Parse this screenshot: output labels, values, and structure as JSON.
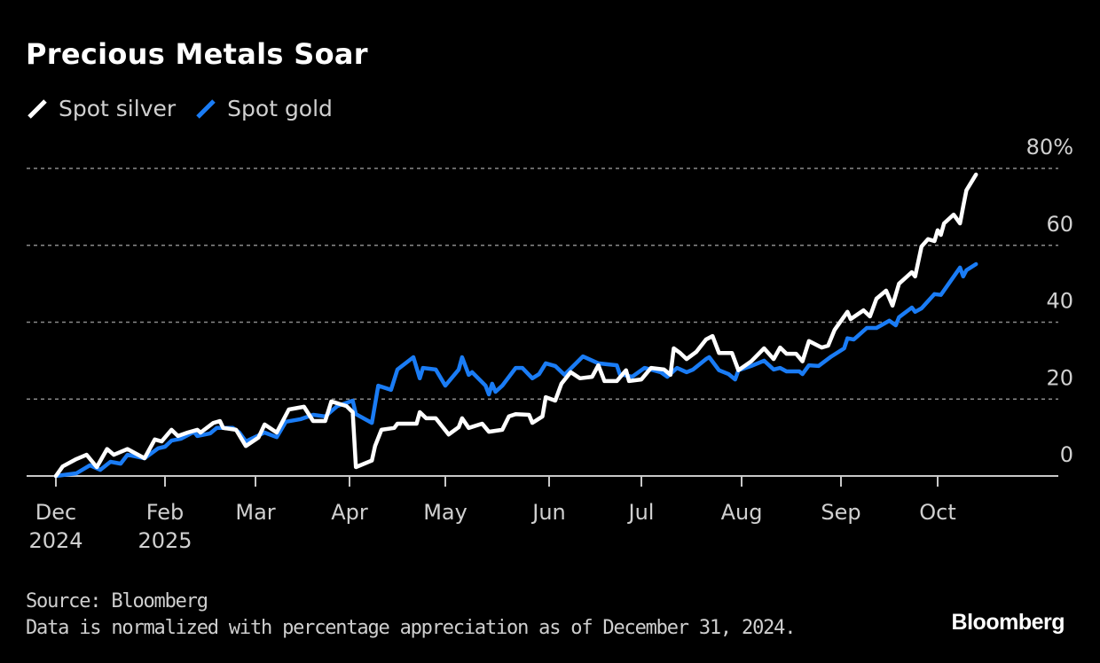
{
  "chart_data": {
    "type": "line",
    "title": "Precious Metals Soar",
    "xlabel": "",
    "ylabel": "",
    "ylim": [
      0,
      80
    ],
    "y_ticks": [
      0,
      20,
      40,
      60,
      80
    ],
    "y_tick_labels": [
      "0",
      "20",
      "40",
      "60",
      "80%"
    ],
    "x_ticks": [
      {
        "date": "2024-12-31",
        "label": "Dec",
        "sublabel": "2024"
      },
      {
        "date": "2025-02-01",
        "label": "Feb",
        "sublabel": "2025"
      },
      {
        "date": "2025-03-01",
        "label": "Mar",
        "sublabel": ""
      },
      {
        "date": "2025-04-01",
        "label": "Apr",
        "sublabel": ""
      },
      {
        "date": "2025-05-01",
        "label": "May",
        "sublabel": ""
      },
      {
        "date": "2025-06-01",
        "label": "Jun",
        "sublabel": ""
      },
      {
        "date": "2025-07-01",
        "label": "Jul",
        "sublabel": ""
      },
      {
        "date": "2025-08-01",
        "label": "Aug",
        "sublabel": ""
      },
      {
        "date": "2025-09-01",
        "label": "Sep",
        "sublabel": ""
      },
      {
        "date": "2025-10-01",
        "label": "Oct",
        "sublabel": ""
      }
    ],
    "grid": "horizontal dashed",
    "legend": "top-left",
    "series": [
      {
        "name": "Spot silver",
        "color": "#ffffff",
        "points": [
          [
            "2024-12-31",
            0
          ],
          [
            "2025-01-02",
            2.5
          ],
          [
            "2025-01-06",
            4.4
          ],
          [
            "2025-01-09",
            5.5
          ],
          [
            "2025-01-12",
            2.3
          ],
          [
            "2025-01-15",
            7
          ],
          [
            "2025-01-17",
            5.5
          ],
          [
            "2025-01-21",
            7
          ],
          [
            "2025-01-26",
            4.6
          ],
          [
            "2025-01-29",
            9.5
          ],
          [
            "2025-01-31",
            9
          ],
          [
            "2025-02-03",
            12
          ],
          [
            "2025-02-05",
            10.4
          ],
          [
            "2025-02-08",
            11.3
          ],
          [
            "2025-02-11",
            12
          ],
          [
            "2025-02-12",
            11.3
          ],
          [
            "2025-02-16",
            13.8
          ],
          [
            "2025-02-18",
            14.3
          ],
          [
            "2025-02-19",
            12.5
          ],
          [
            "2025-02-23",
            12
          ],
          [
            "2025-02-26",
            7.8
          ],
          [
            "2025-03-02",
            10
          ],
          [
            "2025-03-04",
            13.4
          ],
          [
            "2025-03-08",
            11.3
          ],
          [
            "2025-03-12",
            17.3
          ],
          [
            "2025-03-17",
            18
          ],
          [
            "2025-03-20",
            14.3
          ],
          [
            "2025-03-24",
            14.3
          ],
          [
            "2025-03-26",
            19.4
          ],
          [
            "2025-03-31",
            18.2
          ],
          [
            "2025-04-02",
            16.6
          ],
          [
            "2025-04-03",
            2.3
          ],
          [
            "2025-04-08",
            4
          ],
          [
            "2025-04-09",
            7.8
          ],
          [
            "2025-04-11",
            12
          ],
          [
            "2025-04-15",
            12.5
          ],
          [
            "2025-04-16",
            13.6
          ],
          [
            "2025-04-22",
            13.6
          ],
          [
            "2025-04-23",
            16.6
          ],
          [
            "2025-04-25",
            15
          ],
          [
            "2025-04-28",
            15
          ],
          [
            "2025-05-02",
            10.8
          ],
          [
            "2025-05-05",
            12.7
          ],
          [
            "2025-05-06",
            15
          ],
          [
            "2025-05-08",
            12.5
          ],
          [
            "2025-05-12",
            13.6
          ],
          [
            "2025-05-14",
            11.5
          ],
          [
            "2025-05-18",
            12
          ],
          [
            "2025-05-20",
            15.5
          ],
          [
            "2025-05-22",
            16.1
          ],
          [
            "2025-05-26",
            15.9
          ],
          [
            "2025-05-27",
            13.8
          ],
          [
            "2025-05-30",
            15.5
          ],
          [
            "2025-05-31",
            20.5
          ],
          [
            "2025-06-03",
            19.6
          ],
          [
            "2025-06-05",
            24
          ],
          [
            "2025-06-08",
            27
          ],
          [
            "2025-06-11",
            25.4
          ],
          [
            "2025-06-15",
            25.8
          ],
          [
            "2025-06-17",
            28.8
          ],
          [
            "2025-06-19",
            24.7
          ],
          [
            "2025-06-23",
            24.7
          ],
          [
            "2025-06-26",
            27.5
          ],
          [
            "2025-06-27",
            24.7
          ],
          [
            "2025-07-01",
            25.1
          ],
          [
            "2025-07-04",
            28.1
          ],
          [
            "2025-07-08",
            27.7
          ],
          [
            "2025-07-10",
            26.3
          ],
          [
            "2025-07-11",
            33.2
          ],
          [
            "2025-07-13",
            32
          ],
          [
            "2025-07-15",
            30.4
          ],
          [
            "2025-07-18",
            32.3
          ],
          [
            "2025-07-21",
            35.5
          ],
          [
            "2025-07-23",
            36.4
          ],
          [
            "2025-07-25",
            32
          ],
          [
            "2025-07-29",
            32
          ],
          [
            "2025-07-31",
            27.5
          ],
          [
            "2025-08-04",
            29.8
          ],
          [
            "2025-08-08",
            33.2
          ],
          [
            "2025-08-11",
            30.4
          ],
          [
            "2025-08-13",
            33.4
          ],
          [
            "2025-08-15",
            31.8
          ],
          [
            "2025-08-18",
            31.8
          ],
          [
            "2025-08-20",
            29.8
          ],
          [
            "2025-08-22",
            35.1
          ],
          [
            "2025-08-26",
            33.4
          ],
          [
            "2025-08-28",
            33.9
          ],
          [
            "2025-08-30",
            38
          ],
          [
            "2025-09-03",
            42.7
          ],
          [
            "2025-09-04",
            40.8
          ],
          [
            "2025-09-08",
            43.1
          ],
          [
            "2025-09-10",
            41.5
          ],
          [
            "2025-09-12",
            46.1
          ],
          [
            "2025-09-15",
            48.2
          ],
          [
            "2025-09-17",
            44.3
          ],
          [
            "2025-09-19",
            50
          ],
          [
            "2025-09-23",
            53
          ],
          [
            "2025-09-24",
            51.9
          ],
          [
            "2025-09-26",
            59.7
          ],
          [
            "2025-09-28",
            61.6
          ],
          [
            "2025-09-30",
            61.1
          ],
          [
            "2025-10-01",
            63.9
          ],
          [
            "2025-10-02",
            62.7
          ],
          [
            "2025-10-03",
            65.7
          ],
          [
            "2025-10-06",
            68
          ],
          [
            "2025-10-08",
            65.7
          ],
          [
            "2025-10-09",
            70.1
          ],
          [
            "2025-10-10",
            74.3
          ],
          [
            "2025-10-13",
            78.4
          ]
        ]
      },
      {
        "name": "Spot gold",
        "color": "#1a7cf5",
        "points": [
          [
            "2024-12-31",
            0
          ],
          [
            "2025-01-06",
            0.7
          ],
          [
            "2025-01-10",
            2.8
          ],
          [
            "2025-01-13",
            1.6
          ],
          [
            "2025-01-16",
            3.7
          ],
          [
            "2025-01-19",
            3.2
          ],
          [
            "2025-01-21",
            5.5
          ],
          [
            "2025-01-26",
            4.6
          ],
          [
            "2025-01-30",
            7.2
          ],
          [
            "2025-02-01",
            7.6
          ],
          [
            "2025-02-03",
            9.2
          ],
          [
            "2025-02-06",
            9.7
          ],
          [
            "2025-02-10",
            11.5
          ],
          [
            "2025-02-11",
            10.4
          ],
          [
            "2025-02-15",
            11.1
          ],
          [
            "2025-02-17",
            12.5
          ],
          [
            "2025-02-22",
            12.5
          ],
          [
            "2025-02-24",
            11.3
          ],
          [
            "2025-02-26",
            9
          ],
          [
            "2025-03-04",
            11.3
          ],
          [
            "2025-03-08",
            10.1
          ],
          [
            "2025-03-11",
            14.1
          ],
          [
            "2025-03-16",
            14.8
          ],
          [
            "2025-03-20",
            15.9
          ],
          [
            "2025-03-24",
            15.5
          ],
          [
            "2025-03-28",
            18.2
          ],
          [
            "2025-04-02",
            19.6
          ],
          [
            "2025-04-03",
            16.1
          ],
          [
            "2025-04-08",
            13.8
          ],
          [
            "2025-04-10",
            23.5
          ],
          [
            "2025-04-14",
            22.4
          ],
          [
            "2025-04-16",
            27.7
          ],
          [
            "2025-04-21",
            30.9
          ],
          [
            "2025-04-23",
            25.4
          ],
          [
            "2025-04-24",
            28.1
          ],
          [
            "2025-04-28",
            27.7
          ],
          [
            "2025-05-01",
            23.5
          ],
          [
            "2025-05-05",
            27.7
          ],
          [
            "2025-05-06",
            30.9
          ],
          [
            "2025-05-08",
            26.3
          ],
          [
            "2025-05-09",
            27
          ],
          [
            "2025-05-13",
            23.5
          ],
          [
            "2025-05-14",
            21.2
          ],
          [
            "2025-05-15",
            24
          ],
          [
            "2025-05-16",
            21.9
          ],
          [
            "2025-05-18",
            23.5
          ],
          [
            "2025-05-22",
            28.1
          ],
          [
            "2025-05-24",
            28.1
          ],
          [
            "2025-05-27",
            25.4
          ],
          [
            "2025-05-29",
            26.5
          ],
          [
            "2025-05-31",
            29.3
          ],
          [
            "2025-06-03",
            28.6
          ],
          [
            "2025-06-06",
            26.3
          ],
          [
            "2025-06-12",
            31.1
          ],
          [
            "2025-06-17",
            29.3
          ],
          [
            "2025-06-23",
            28.8
          ],
          [
            "2025-06-24",
            26.5
          ],
          [
            "2025-06-28",
            25.8
          ],
          [
            "2025-07-02",
            28.1
          ],
          [
            "2025-07-07",
            27
          ],
          [
            "2025-07-09",
            25.8
          ],
          [
            "2025-07-12",
            28.1
          ],
          [
            "2025-07-15",
            27
          ],
          [
            "2025-07-17",
            27.7
          ],
          [
            "2025-07-21",
            30.4
          ],
          [
            "2025-07-22",
            30.9
          ],
          [
            "2025-07-25",
            27.5
          ],
          [
            "2025-07-28",
            26.5
          ],
          [
            "2025-07-30",
            25.1
          ],
          [
            "2025-07-31",
            27.5
          ],
          [
            "2025-08-04",
            28.6
          ],
          [
            "2025-08-08",
            30
          ],
          [
            "2025-08-11",
            27.7
          ],
          [
            "2025-08-13",
            28.1
          ],
          [
            "2025-08-15",
            27.2
          ],
          [
            "2025-08-19",
            27.2
          ],
          [
            "2025-08-20",
            26.5
          ],
          [
            "2025-08-22",
            28.8
          ],
          [
            "2025-08-25",
            28.6
          ],
          [
            "2025-08-29",
            31.1
          ],
          [
            "2025-09-02",
            33.2
          ],
          [
            "2025-09-03",
            35.8
          ],
          [
            "2025-09-05",
            35.5
          ],
          [
            "2025-09-09",
            38.5
          ],
          [
            "2025-09-12",
            38.5
          ],
          [
            "2025-09-16",
            40.4
          ],
          [
            "2025-09-18",
            39.2
          ],
          [
            "2025-09-19",
            41.3
          ],
          [
            "2025-09-23",
            43.8
          ],
          [
            "2025-09-24",
            42.7
          ],
          [
            "2025-09-26",
            43.6
          ],
          [
            "2025-09-30",
            47.3
          ],
          [
            "2025-10-02",
            47.1
          ],
          [
            "2025-10-08",
            54.2
          ],
          [
            "2025-10-09",
            51.9
          ],
          [
            "2025-10-10",
            53.5
          ],
          [
            "2025-10-13",
            55.1
          ]
        ]
      }
    ]
  },
  "footer": {
    "source": "Source: Bloomberg",
    "note": "Data is normalized with percentage appreciation as of December 31, 2024."
  },
  "logo": "Bloomberg"
}
